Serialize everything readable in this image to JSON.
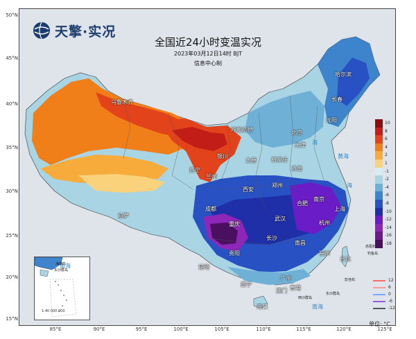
{
  "logo": {
    "text": "天擎·实况",
    "icon": "globe-icon"
  },
  "title": "全国近24小时变温实况",
  "subtitle": "2023年03月12日14时 BJT",
  "producer": "信息中心制",
  "lat_labels": [
    "50°N",
    "45°N",
    "40°N",
    "35°N",
    "30°N",
    "25°N",
    "20°N",
    "15°N"
  ],
  "lon_labels": [
    "85°E",
    "90°E",
    "95°E",
    "100°E",
    "105°E",
    "110°E",
    "115°E",
    "120°E",
    "125°E"
  ],
  "cities": [
    {
      "name": "哈尔滨",
      "dark": false
    },
    {
      "name": "长春",
      "dark": false
    },
    {
      "name": "沈阳",
      "dark": false
    },
    {
      "name": "乌鲁木齐",
      "dark": false
    },
    {
      "name": "呼和浩特",
      "dark": false
    },
    {
      "name": "北京",
      "dark": false
    },
    {
      "name": "天津",
      "dark": false
    },
    {
      "name": "银川",
      "dark": false
    },
    {
      "name": "太原",
      "dark": false
    },
    {
      "name": "石家庄",
      "dark": false
    },
    {
      "name": "济南",
      "dark": false
    },
    {
      "name": "西宁",
      "dark": false
    },
    {
      "name": "兰州",
      "dark": false
    },
    {
      "name": "郑州",
      "dark": false
    },
    {
      "name": "西安",
      "dark": false
    },
    {
      "name": "合肥",
      "dark": false
    },
    {
      "name": "南京",
      "dark": false
    },
    {
      "name": "上海",
      "dark": false
    },
    {
      "name": "拉萨",
      "dark": false
    },
    {
      "name": "成都",
      "dark": false
    },
    {
      "name": "武汉",
      "dark": false
    },
    {
      "name": "杭州",
      "dark": false
    },
    {
      "name": "重庆",
      "dark": false
    },
    {
      "name": "长沙",
      "dark": false
    },
    {
      "name": "南昌",
      "dark": false
    },
    {
      "name": "福州",
      "dark": false
    },
    {
      "name": "贵阳",
      "dark": false
    },
    {
      "name": "昆明",
      "dark": false
    },
    {
      "name": "台北",
      "dark": false
    },
    {
      "name": "南宁",
      "dark": false
    },
    {
      "name": "广州",
      "dark": false
    },
    {
      "name": "香港",
      "dark": false
    },
    {
      "name": "澳门",
      "dark": false
    },
    {
      "name": "海口",
      "dark": false
    }
  ],
  "islands": [
    "赤尾屿",
    "钓鱼岛",
    "彭佳屿",
    "东沙群岛",
    "西沙群岛"
  ],
  "seas": [
    "黄海",
    "海",
    "南海",
    "海"
  ],
  "inset": {
    "sea": "南海",
    "scale": "1:40 000 000",
    "labels": [
      "海南岛",
      "东沙群岛"
    ]
  },
  "legend": {
    "values": [
      "10",
      "8",
      "6",
      "4",
      "2",
      "1",
      "-1",
      "-2",
      "-4",
      "-6",
      "-8",
      "-10",
      "-12",
      "-14",
      "-16",
      "-18"
    ],
    "colors": [
      "#8b0d0d",
      "#c21d16",
      "#e2431a",
      "#f07f1a",
      "#f6ab3b",
      "#fad27c",
      "#d9ecf2",
      "#a9d4e4",
      "#6fb1d6",
      "#3d84cc",
      "#2852c4",
      "#1f2fa8",
      "#6a1cc6",
      "#8e27b8",
      "#6b1a8c",
      "#4a0f5e"
    ]
  },
  "line_legend": [
    {
      "label": "12",
      "color": "#ff6b6b"
    },
    {
      "label": "6",
      "color": "#ff9999"
    },
    {
      "label": "0",
      "color": "#7fa7ff"
    },
    {
      "label": "-6",
      "color": "#9a5cd6"
    },
    {
      "label": "-12",
      "color": "#555555"
    }
  ],
  "unit": "单位: °C"
}
